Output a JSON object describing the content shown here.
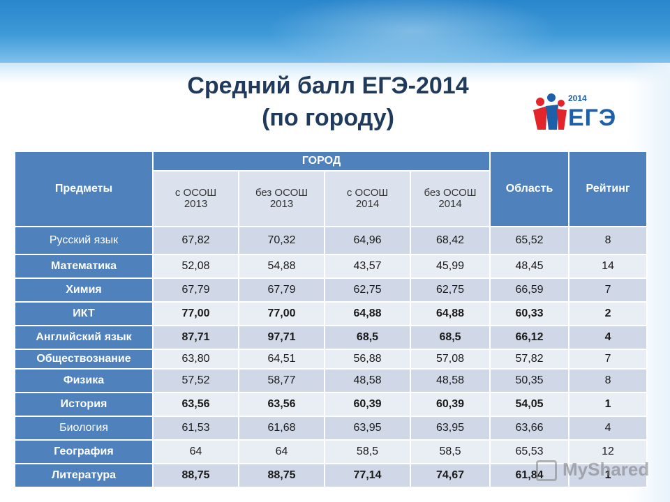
{
  "title": {
    "line1": "Средний балл ЕГЭ-2014",
    "line2": "(по городу)"
  },
  "logo": {
    "year": "2014",
    "text": "ЕГЭ",
    "colors": [
      "#e2242b",
      "#1d5fa8"
    ]
  },
  "table": {
    "headers": {
      "subject": "Предметы",
      "city": "ГОРОД",
      "city_cols": [
        {
          "line1": "с ОСОШ",
          "line2": "2013"
        },
        {
          "line1": "без ОСОШ",
          "line2": "2013"
        },
        {
          "line1": "с ОСОШ",
          "line2": "2014"
        },
        {
          "line1": "без ОСОШ",
          "line2": "2014"
        }
      ],
      "region": "Область",
      "rating": "Рейтинг"
    },
    "rows": [
      {
        "subject": "Русский язык",
        "values": [
          "67,82",
          "70,32",
          "64,96",
          "68,42",
          "65,52",
          "8"
        ]
      },
      {
        "subject": "Математика",
        "values": [
          "52,08",
          "54,88",
          "43,57",
          "45,99",
          "48,45",
          "14"
        ]
      },
      {
        "subject": "Химия",
        "values": [
          "67,79",
          "67,79",
          "62,75",
          "62,75",
          "66,59",
          "7"
        ]
      },
      {
        "subject": "ИКТ",
        "values": [
          "77,00",
          "77,00",
          "64,88",
          "64,88",
          "60,33",
          "2"
        ]
      },
      {
        "subject": "Английский язык",
        "values": [
          "87,71",
          "97,71",
          "68,5",
          "68,5",
          "66,12",
          "4"
        ]
      },
      {
        "subject": "Обществознание",
        "values": [
          "63,80",
          "64,51",
          "56,88",
          "57,08",
          "57,82",
          "7"
        ]
      },
      {
        "subject": "Физика",
        "values": [
          "57,52",
          "58,77",
          "48,58",
          "48,58",
          "50,35",
          "8"
        ]
      },
      {
        "subject": "История",
        "values": [
          "63,56",
          "63,56",
          "60,39",
          "60,39",
          "54,05",
          "1"
        ]
      },
      {
        "subject": "Биология",
        "values": [
          "61,53",
          "61,68",
          "63,95",
          "63,95",
          "63,66",
          "4"
        ]
      },
      {
        "subject": "География",
        "values": [
          "64",
          "64",
          "58,5",
          "58,5",
          "65,53",
          "12"
        ]
      },
      {
        "subject": "Литература",
        "values": [
          "88,75",
          "88,75",
          "77,14",
          "74,67",
          "61,84",
          "1"
        ]
      }
    ]
  },
  "watermark": {
    "text": "MyShared"
  },
  "colors": {
    "header_blue": "#4f81bd",
    "row_dark": "#d0d8e8",
    "row_light": "#e9edf4",
    "title": "#1f3a5a"
  }
}
